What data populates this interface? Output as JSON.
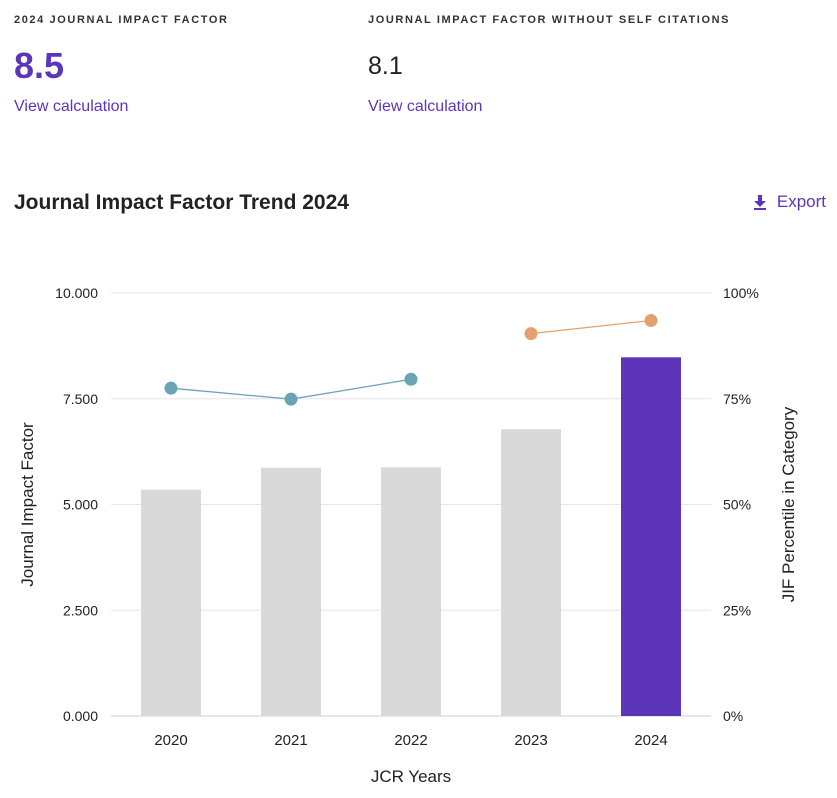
{
  "metrics": {
    "jif": {
      "label": "2024 JOURNAL IMPACT FACTOR",
      "value": "8.5",
      "link": "View calculation"
    },
    "jif_no_self": {
      "label": "JOURNAL IMPACT FACTOR WITHOUT SELF CITATIONS",
      "value": "8.1",
      "link": "View calculation"
    }
  },
  "trend": {
    "title": "Journal Impact Factor Trend 2024",
    "export_label": "Export",
    "export_icon": "download-icon"
  },
  "chart_data": {
    "type": "bar",
    "title": "Journal Impact Factor Trend 2024",
    "xlabel": "JCR Years",
    "ylabel": "Journal Impact Factor",
    "y2label": "JIF Percentile in Category",
    "categories": [
      "2020",
      "2021",
      "2022",
      "2023",
      "2024"
    ],
    "ylim": [
      0,
      10
    ],
    "y2lim": [
      0,
      100
    ],
    "yticks": [
      "0.000",
      "2.500",
      "5.000",
      "7.500",
      "10.000"
    ],
    "y2ticks": [
      "0%",
      "25%",
      "50%",
      "75%",
      "100%"
    ],
    "grid": true,
    "series": [
      {
        "type": "bar",
        "axis": "left",
        "values": [
          5.35,
          5.87,
          5.88,
          6.78,
          8.48
        ],
        "colors": [
          "#d9d9d9",
          "#d9d9d9",
          "#d9d9d9",
          "#d9d9d9",
          "#5c35ba"
        ]
      },
      {
        "type": "line",
        "axis": "right",
        "color": "#6aa3b5",
        "points": [
          {
            "x": "2020",
            "y": 77.5
          },
          {
            "x": "2021",
            "y": 74.9
          },
          {
            "x": "2022",
            "y": 79.6
          }
        ]
      },
      {
        "type": "line",
        "axis": "right",
        "color": "#e4a06f",
        "points": [
          {
            "x": "2023",
            "y": 90.4
          },
          {
            "x": "2024",
            "y": 93.5
          }
        ]
      }
    ]
  },
  "colors": {
    "accent": "#5c35ba",
    "bar_default": "#d9d9d9",
    "grid": "#e6e6e6"
  }
}
